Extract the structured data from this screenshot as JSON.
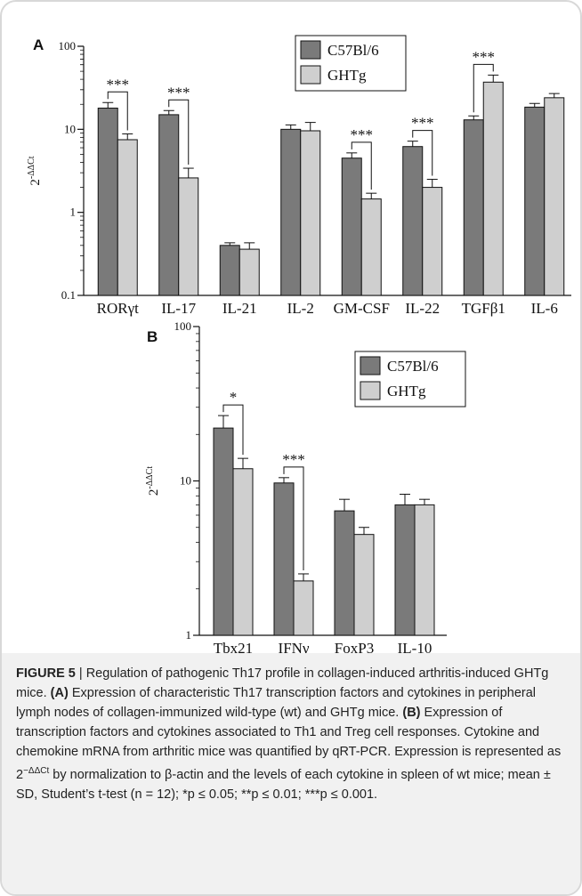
{
  "colors": {
    "series_1": "#7a7a7a",
    "series_2": "#cfcfcf",
    "stroke": "#111111",
    "caption_bg": "#f1f1f1"
  },
  "chart_data": [
    {
      "type": "bar",
      "panel_label": "A",
      "ylabel": "2",
      "ylabel_sup": "-ΔΔCt",
      "yscale": "log",
      "ylim": [
        0.1,
        100
      ],
      "yticks": [
        "100",
        "10",
        "1",
        "0.1"
      ],
      "categories": [
        "RORγt",
        "IL-17",
        "IL-21",
        "IL-2",
        "GM-CSF",
        "IL-22",
        "TGFβ1",
        "IL-6"
      ],
      "series": [
        {
          "name": "C57Bl/6",
          "values": [
            18,
            15,
            0.4,
            10,
            4.5,
            6.2,
            13,
            18.5
          ],
          "errors": [
            3,
            1.8,
            0.03,
            1.3,
            0.7,
            1.0,
            1.5,
            2.0
          ]
        },
        {
          "name": "GHTg",
          "values": [
            7.5,
            2.6,
            0.36,
            9.6,
            1.45,
            2.0,
            37,
            24
          ],
          "errors": [
            1.3,
            0.8,
            0.07,
            2.5,
            0.25,
            0.5,
            8,
            3
          ]
        }
      ],
      "significance": [
        {
          "category": "RORγt",
          "label": "***"
        },
        {
          "category": "IL-17",
          "label": "***"
        },
        {
          "category": "GM-CSF",
          "label": "***"
        },
        {
          "category": "IL-22",
          "label": "***"
        },
        {
          "category": "TGFβ1",
          "label": "***"
        }
      ],
      "legend": "top-center"
    },
    {
      "type": "bar",
      "panel_label": "B",
      "ylabel": "2",
      "ylabel_sup": "-ΔΔCt",
      "yscale": "log",
      "ylim": [
        1,
        100
      ],
      "yticks": [
        "100",
        "10",
        "1"
      ],
      "categories": [
        "Tbx21",
        "IFNγ",
        "FoxP3",
        "IL-10"
      ],
      "series": [
        {
          "name": "C57Bl/6",
          "values": [
            22,
            9.7,
            6.4,
            7.0
          ],
          "errors": [
            4.5,
            0.8,
            1.2,
            1.2
          ]
        },
        {
          "name": "GHTg",
          "values": [
            12,
            2.25,
            4.5,
            7.0
          ],
          "errors": [
            2.0,
            0.25,
            0.5,
            0.6
          ]
        }
      ],
      "significance": [
        {
          "category": "Tbx21",
          "label": "*"
        },
        {
          "category": "IFNγ",
          "label": "***"
        }
      ],
      "legend": "top-right"
    }
  ],
  "caption": {
    "title": "FIGURE 5",
    "separator": " | ",
    "lead": "Regulation of pathogenic Th17 profile in collagen-induced arthritis-induced GHTg mice. ",
    "a_label": "(A)",
    "a_text": " Expression of characteristic Th17 transcription factors and cytokines in peripheral lymph nodes of collagen-immunized wild-type (wt) and GHTg mice. ",
    "b_label": "(B)",
    "b_text": " Expression of transcription factors and cytokines associated to Th1 and Treg cell responses. Cytokine and chemokine mRNA from arthritic mice was quantified by qRT-PCR. Expression is represented as 2",
    "sup": "−ΔΔCt",
    "tail": " by normalization to β-actin and the levels of each cytokine in spleen of wt mice; mean ± SD, Student’s t-test (n = 12); *p ≤ 0.05; **p ≤ 0.01; ***p ≤ 0.001."
  }
}
